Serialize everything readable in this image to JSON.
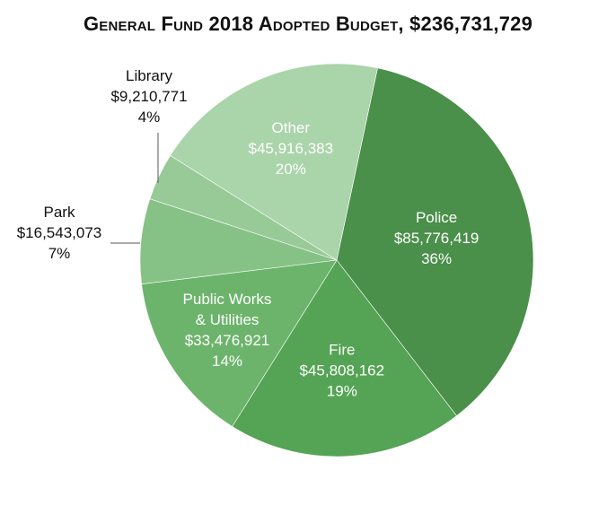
{
  "chart_data": {
    "type": "pie",
    "title": "General Fund 2018 Adopted Budget, $236,731,729",
    "slices": [
      {
        "name": "Police",
        "label_lines": [
          "Police",
          "$85,776,419",
          "36%"
        ],
        "value": 85776419,
        "percent": 36,
        "color": "#4a8f4a",
        "label_position": "inside"
      },
      {
        "name": "Fire",
        "label_lines": [
          "Fire",
          "$45,808,162",
          "19%"
        ],
        "value": 45808162,
        "percent": 19,
        "color": "#55a355",
        "label_position": "inside"
      },
      {
        "name": "Public Works & Utilities",
        "label_lines": [
          "Public Works",
          "& Utilities",
          "$33,476,921",
          "14%"
        ],
        "value": 33476921,
        "percent": 14,
        "color": "#6cb46c",
        "label_position": "inside"
      },
      {
        "name": "Park",
        "label_lines": [
          "Park",
          "$16,543,073",
          "7%"
        ],
        "value": 16543073,
        "percent": 7,
        "color": "#86c286",
        "label_position": "outside"
      },
      {
        "name": "Library",
        "label_lines": [
          "Library",
          "$9,210,771",
          "4%"
        ],
        "value": 9210771,
        "percent": 4,
        "color": "#97ca97",
        "label_position": "outside"
      },
      {
        "name": "Other",
        "label_lines": [
          "Other",
          "$45,916,383",
          "20%"
        ],
        "value": 45916383,
        "percent": 20,
        "color": "#aad4aa",
        "label_position": "inside"
      }
    ]
  }
}
